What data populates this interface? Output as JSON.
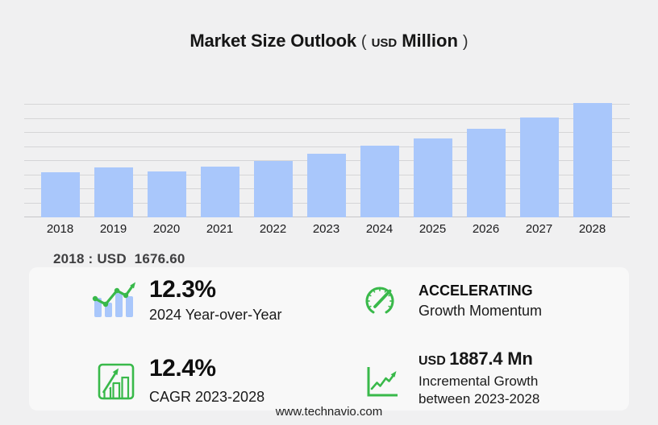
{
  "title": {
    "main": "Market Size Outlook",
    "paren_open": "(",
    "unit_small": "USD",
    "unit_large": "Million",
    "paren_close": ")"
  },
  "chart_data": {
    "type": "bar",
    "title": "Market Size Outlook (USD Million)",
    "ylabel": "USD Million",
    "categories": [
      "2018",
      "2019",
      "2020",
      "2021",
      "2022",
      "2023",
      "2024",
      "2025",
      "2026",
      "2027",
      "2028"
    ],
    "values": [
      1676.6,
      1856.0,
      1725.0,
      1887.0,
      2107.0,
      2377.0,
      2669.4,
      2959.0,
      3311.0,
      3741.0,
      4264.4
    ],
    "ylim": [
      0,
      4500
    ],
    "gridlines": 9,
    "grid": true,
    "legend": "none",
    "annotation": "2018 : USD  1676.60"
  },
  "stats": {
    "yoy": {
      "icon": "trend-bar-chart-icon",
      "value": "12.3%",
      "label": "2024 Year-over-Year"
    },
    "momentum": {
      "icon": "gauge-icon",
      "title": "ACCELERATING",
      "label": "Growth Momentum"
    },
    "cagr": {
      "icon": "framed-growth-chart-icon",
      "value": "12.4%",
      "label": "CAGR 2023-2028"
    },
    "incremental": {
      "icon": "line-growth-icon",
      "currency": "USD",
      "value": "1887.4 Mn",
      "line1": "Incremental Growth",
      "line2": "between 2023-2028"
    }
  },
  "footer": {
    "url": "www.technavio.com"
  },
  "colors": {
    "bar": "#a9c7fb",
    "green": "#39b94a",
    "background": "#f0f0f1",
    "gridline": "#d5d5d7",
    "annotation_text": "#3f3f41"
  }
}
